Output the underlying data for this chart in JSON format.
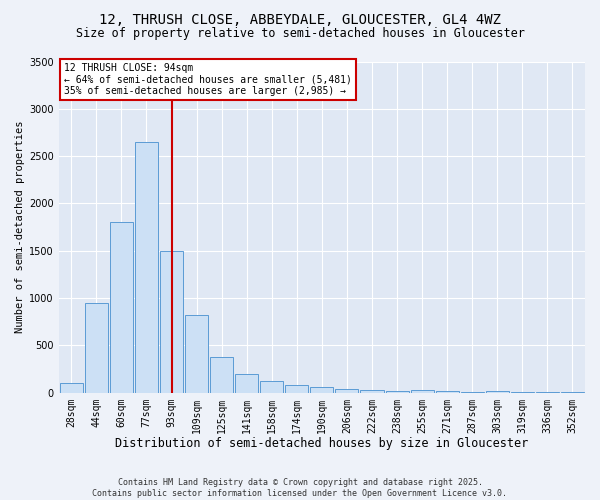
{
  "title1": "12, THRUSH CLOSE, ABBEYDALE, GLOUCESTER, GL4 4WZ",
  "title2": "Size of property relative to semi-detached houses in Gloucester",
  "xlabel": "Distribution of semi-detached houses by size in Gloucester",
  "ylabel": "Number of semi-detached properties",
  "footer": "Contains HM Land Registry data © Crown copyright and database right 2025.\nContains public sector information licensed under the Open Government Licence v3.0.",
  "bins": [
    "28sqm",
    "44sqm",
    "60sqm",
    "77sqm",
    "93sqm",
    "109sqm",
    "125sqm",
    "141sqm",
    "158sqm",
    "174sqm",
    "190sqm",
    "206sqm",
    "222sqm",
    "238sqm",
    "255sqm",
    "271sqm",
    "287sqm",
    "303sqm",
    "319sqm",
    "336sqm",
    "352sqm"
  ],
  "values": [
    100,
    950,
    1800,
    2650,
    1500,
    820,
    380,
    200,
    120,
    80,
    60,
    40,
    30,
    20,
    30,
    20,
    10,
    20,
    10,
    5,
    5
  ],
  "bar_color": "#cce0f5",
  "bar_edge_color": "#5b9bd5",
  "vline_x_index": 4,
  "vline_color": "#cc0000",
  "annotation_title": "12 THRUSH CLOSE: 94sqm",
  "annotation_line2": "← 64% of semi-detached houses are smaller (5,481)",
  "annotation_line3": "35% of semi-detached houses are larger (2,985) →",
  "annotation_box_color": "#ffffff",
  "annotation_box_edge": "#cc0000",
  "ylim": [
    0,
    3500
  ],
  "yticks": [
    0,
    500,
    1000,
    1500,
    2000,
    2500,
    3000,
    3500
  ],
  "bg_color": "#eef2f9",
  "plot_bg": "#e0e8f4",
  "grid_color": "#ffffff",
  "title1_fontsize": 10,
  "title2_fontsize": 8.5,
  "xlabel_fontsize": 8.5,
  "ylabel_fontsize": 7.5,
  "tick_fontsize": 7,
  "footer_fontsize": 6
}
